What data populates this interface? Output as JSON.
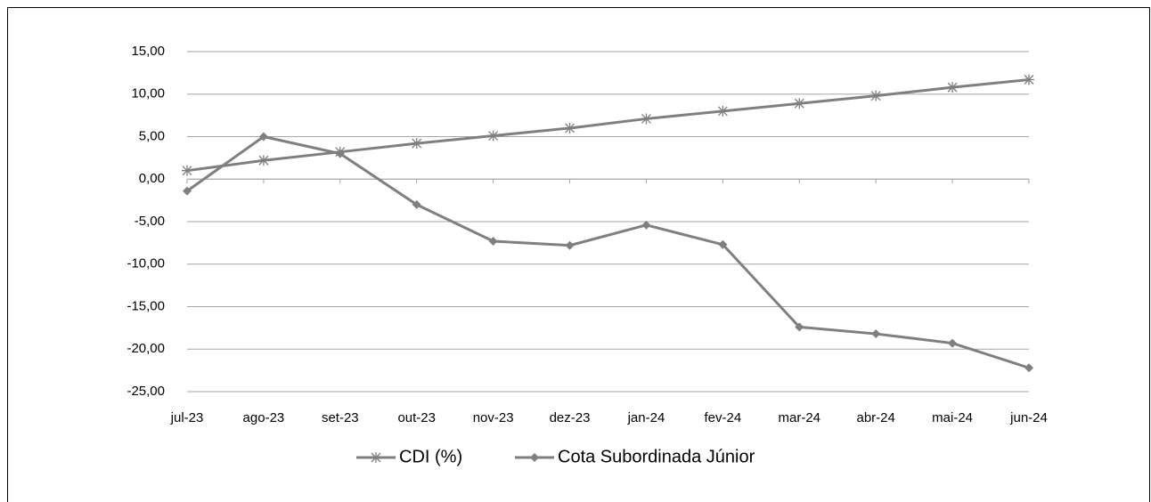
{
  "chart_data": {
    "type": "line",
    "categories": [
      "jul-23",
      "ago-23",
      "set-23",
      "out-23",
      "nov-23",
      "dez-23",
      "jan-24",
      "fev-24",
      "mar-24",
      "abr-24",
      "mai-24",
      "jun-24"
    ],
    "series": [
      {
        "name": "CDI (%)",
        "color": "#7f7f7f",
        "marker": "star",
        "values": [
          1.0,
          2.2,
          3.2,
          4.2,
          5.1,
          6.0,
          7.1,
          8.0,
          8.9,
          9.8,
          10.8,
          11.7
        ]
      },
      {
        "name": "Cota Subordinada Júnior",
        "color": "#7f7f7f",
        "marker": "diamond",
        "values": [
          -1.4,
          5.0,
          3.0,
          -3.0,
          -7.3,
          -7.8,
          -5.4,
          -7.7,
          -17.4,
          -18.2,
          -19.3,
          -22.2
        ]
      }
    ],
    "ylim": [
      -25,
      15
    ],
    "yticks": [
      {
        "value": 15,
        "label": "15,00"
      },
      {
        "value": 10,
        "label": "10,00"
      },
      {
        "value": 5,
        "label": "5,00"
      },
      {
        "value": 0,
        "label": "0,00"
      },
      {
        "value": -5,
        "label": "-5,00"
      },
      {
        "value": -10,
        "label": "-10,00"
      },
      {
        "value": -15,
        "label": "-15,00"
      },
      {
        "value": -20,
        "label": "-20,00"
      },
      {
        "value": -25,
        "label": "-25,00"
      }
    ],
    "grid": true,
    "legend": "bottom"
  }
}
